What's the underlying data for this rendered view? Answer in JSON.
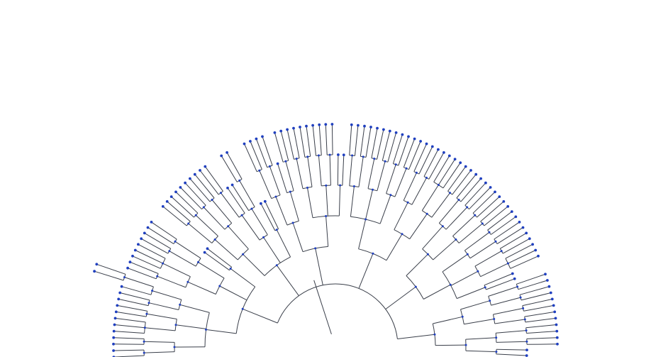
{
  "diagram": {
    "type": "radial-dendrogram",
    "layout": "polar-semicircle",
    "colors": {
      "link": "#3a3f4a",
      "node": "#1f3fbf",
      "background": "#ffffff"
    },
    "tree": {
      "c": [
        {
          "c": [
            {
              "c": [
                {
                  "c": [
                    {
                      "c": [
                        {},
                        {}
                      ]
                    },
                    {
                      "c": [
                        {},
                        {}
                      ]
                    }
                  ]
                },
                {
                  "c": [
                    {
                      "c": [
                        {},
                        {},
                        {}
                      ]
                    },
                    {
                      "c": [
                        {},
                        {}
                      ]
                    }
                  ]
                },
                {
                  "c": [
                    {
                      "c": [
                        {},
                        {}
                      ]
                    },
                    {
                      "c": [
                        {},
                        {
                          "c": [
                            {},
                            {}
                          ]
                        }
                      ]
                    }
                  ]
                }
              ]
            },
            {
              "c": [
                {
                  "c": [
                    {
                      "c": [
                        {},
                        {}
                      ]
                    },
                    {
                      "c": [
                        {},
                        {},
                        {}
                      ]
                    }
                  ]
                },
                {
                  "c": [
                    {
                      "c": [
                        {},
                        {}
                      ]
                    },
                    {
                      "c": [
                        {},
                        {}
                      ]
                    }
                  ]
                }
              ]
            },
            {
              "c": [
                {},
                {}
              ]
            }
          ]
        },
        {
          "c": [
            {
              "c": [
                {
                  "c": [
                    {
                      "c": [
                        {},
                        {}
                      ]
                    },
                    {
                      "c": [
                        {},
                        {}
                      ]
                    }
                  ]
                },
                {
                  "c": [
                    {
                      "c": [
                        {},
                        {}
                      ]
                    },
                    {
                      "c": [
                        {},
                        {}
                      ]
                    }
                  ]
                }
              ]
            },
            {
              "c": [
                {
                  "c": [
                    {
                      "c": [
                        {},
                        {}
                      ]
                    },
                    {}
                  ]
                },
                {
                  "c": [
                    {},
                    {
                      "c": [
                        {},
                        {}
                      ]
                    }
                  ]
                }
              ]
            },
            {
              "c": [
                {},
                {}
              ]
            }
          ]
        },
        {
          "c": [
            {
              "c": [
                {
                  "c": [
                    {
                      "c": [
                        {},
                        {}
                      ]
                    },
                    {
                      "c": [
                        {},
                        {}
                      ]
                    }
                  ]
                },
                {
                  "c": [
                    {},
                    {
                      "c": [
                        {},
                        {}
                      ]
                    }
                  ]
                }
              ]
            },
            {
              "c": [
                {
                  "c": [
                    {
                      "c": [
                        {},
                        {}
                      ]
                    },
                    {
                      "c": [
                        {},
                        {}
                      ]
                    }
                  ]
                },
                {
                  "c": [
                    {
                      "c": [
                        {},
                        {}
                      ]
                    },
                    {
                      "c": [
                        {},
                        {}
                      ]
                    }
                  ]
                },
                {
                  "c": [
                    {},
                    {}
                  ]
                }
              ]
            }
          ]
        },
        {
          "c": [
            {
              "c": [
                {
                  "c": [
                    {
                      "c": [
                        {},
                        {}
                      ]
                    },
                    {
                      "c": [
                        {},
                        {}
                      ]
                    }
                  ]
                },
                {
                  "c": [
                    {
                      "c": [
                        {},
                        {}
                      ]
                    },
                    {
                      "c": [
                        {},
                        {}
                      ]
                    }
                  ]
                },
                {
                  "c": [
                    {
                      "c": [
                        {},
                        {}
                      ]
                    },
                    {
                      "c": [
                        {},
                        {}
                      ]
                    }
                  ]
                }
              ]
            },
            {
              "c": [
                {
                  "c": [
                    {
                      "c": [
                        {},
                        {}
                      ]
                    },
                    {
                      "c": [
                        {},
                        {}
                      ]
                    }
                  ]
                },
                {
                  "c": [
                    {
                      "c": [
                        {},
                        {},
                        {}
                      ]
                    },
                    {
                      "c": [
                        {},
                        {}
                      ]
                    }
                  ]
                }
              ]
            }
          ]
        },
        {
          "c": [
            {
              "c": [
                {
                  "c": [
                    {
                      "c": [
                        {},
                        {}
                      ]
                    },
                    {
                      "c": [
                        {},
                        {}
                      ]
                    }
                  ]
                },
                {
                  "c": [
                    {
                      "c": [
                        {},
                        {}
                      ]
                    },
                    {
                      "c": [
                        {},
                        {}
                      ]
                    }
                  ]
                }
              ]
            },
            {
              "c": [
                {
                  "c": [
                    {
                      "c": [
                        {},
                        {}
                      ]
                    },
                    {
                      "c": [
                        {},
                        {}
                      ]
                    }
                  ]
                },
                {
                  "c": [
                    {
                      "c": [
                        {},
                        {}
                      ]
                    },
                    {
                      "c": [
                        {},
                        {},
                        {}
                      ]
                    }
                  ]
                },
                {
                  "c": [
                    {},
                    {}
                  ]
                }
              ]
            }
          ]
        },
        {
          "c": [
            {
              "c": [
                {
                  "c": [
                    {
                      "c": [
                        {},
                        {}
                      ]
                    },
                    {
                      "c": [
                        {},
                        {}
                      ]
                    }
                  ]
                },
                {
                  "c": [
                    {
                      "c": [
                        {},
                        {}
                      ]
                    },
                    {
                      "c": [
                        {},
                        {}
                      ]
                    }
                  ]
                }
              ]
            },
            {
              "c": [
                {
                  "c": [
                    {
                      "c": [
                        {},
                        {}
                      ]
                    },
                    {
                      "c": [
                        {},
                        {}
                      ]
                    }
                  ]
                },
                {
                  "c": [
                    {},
                    {}
                  ]
                }
              ]
            }
          ]
        }
      ]
    }
  }
}
